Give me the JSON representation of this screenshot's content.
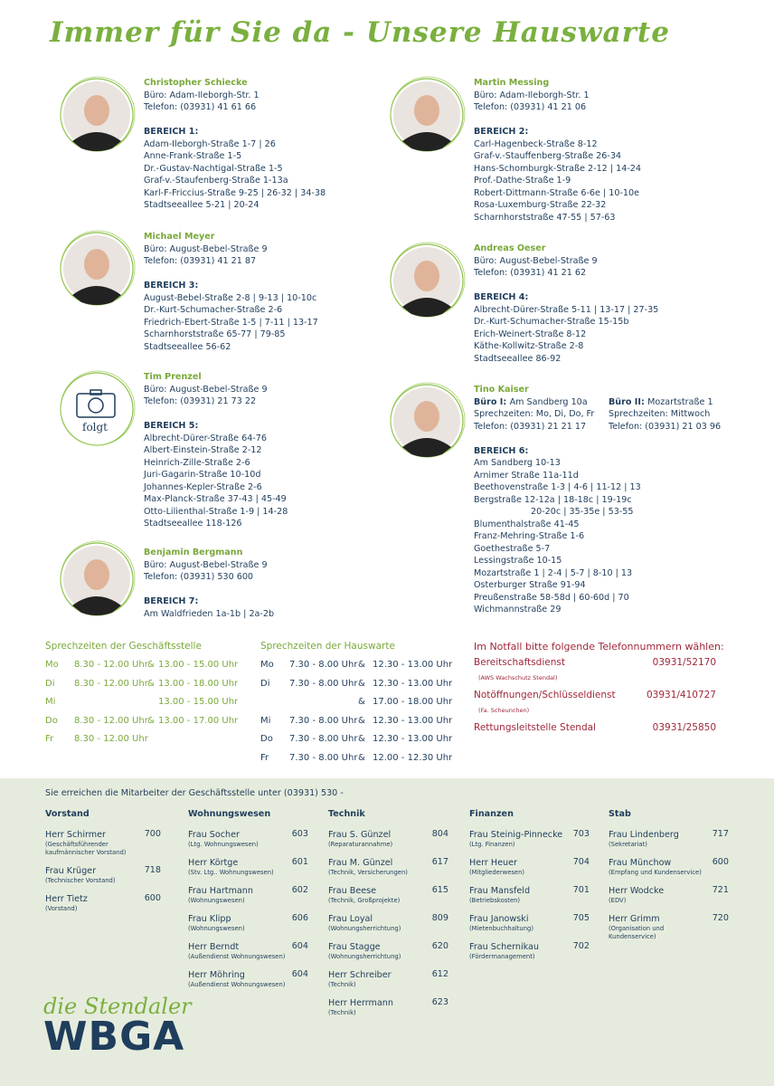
{
  "title": "Immer für Sie da - Unsere Hauswarte",
  "caretakers": [
    {
      "name": "Christopher Schiecke",
      "lines": [
        "Büro: Adam-Ileborgh-Str. 1",
        "Telefon: (03931) 41 61 66"
      ],
      "area": "BEREICH 1:",
      "streets": [
        "Adam-Ileborgh-Straße 1-7 | 26",
        "Anne-Frank-Straße 1-5",
        "Dr.-Gustav-Nachtigal-Straße 1-5",
        "Graf-v.-Staufenberg-Straße 1-13a",
        "Karl-F-Friccius-Straße 9-25 | 26-32 | 34-38",
        "Stadtseeallee 5-21 | 20-24"
      ]
    },
    {
      "name": "Michael Meyer",
      "lines": [
        "Büro: August-Bebel-Straße 9",
        "Telefon: (03931) 41 21 87"
      ],
      "area": "BEREICH 3:",
      "streets": [
        "August-Bebel-Straße 2-8 | 9-13 | 10-10c",
        "Dr.-Kurt-Schumacher-Straße 2-6",
        "Friedrich-Ebert-Straße 1-5 | 7-11 | 13-17",
        "Scharnhorststraße 65-77 | 79-85",
        "Stadtseeallee 56-62"
      ]
    },
    {
      "name": "Tim Prenzel",
      "photo_note": "folgt",
      "lines": [
        "Büro: August-Bebel-Straße 9",
        "Telefon:  (03931) 21 73 22"
      ],
      "area": "BEREICH 5:",
      "streets": [
        "Albrecht-Dürer-Straße 64-76",
        "Albert-Einstein-Straße 2-12",
        "Heinrich-Zille-Straße 2-6",
        "Juri-Gagarin-Straße 10-10d",
        "Johannes-Kepler-Straße 2-6",
        "Max-Planck-Straße 37-43 | 45-49",
        "Otto-Lilienthal-Straße 1-9 | 14-28",
        "Stadtseeallee 118-126"
      ]
    },
    {
      "name": "Benjamin Bergmann",
      "lines": [
        "Büro: August-Bebel-Straße 9",
        "Telefon:  (03931) 530 600"
      ],
      "area": "BEREICH 7:",
      "streets": [
        "Am Waldfrieden 1a-1b | 2a-2b"
      ]
    },
    {
      "name": "Martin Messing",
      "lines": [
        "Büro: Adam-Ileborgh-Str. 1",
        "Telefon: (03931) 41 21 06"
      ],
      "area": "BEREICH 2:",
      "streets": [
        "Carl-Hagenbeck-Straße 8-12",
        "Graf-v.-Stauffenberg-Straße 26-34",
        "Hans-Schomburgk-Straße 2-12 | 14-24",
        "Prof.-Dathe-Straße 1-9",
        "Robert-Dittmann-Straße 6-6e | 10-10e",
        "Rosa-Luxemburg-Straße 22-32",
        "Scharnhorststraße 47-55 | 57-63"
      ]
    },
    {
      "name": "Andreas Oeser",
      "lines": [
        "Büro: August-Bebel-Straße 9",
        "Telefon: (03931) 41 21 62"
      ],
      "area": "BEREICH 4:",
      "streets": [
        "Albrecht-Dürer-Straße 5-11 | 13-17 | 27-35",
        "Dr.-Kurt-Schumacher-Straße 15-15b",
        "Erich-Weinert-Straße 8-12",
        "Käthe-Kollwitz-Straße 2-8",
        "Stadtseeallee 86-92"
      ]
    },
    {
      "name": "Tino Kaiser",
      "offices": [
        {
          "label": "Büro I:",
          "lines": [
            "Am Sandberg 10a",
            "Sprechzeiten: Mo, Di, Do, Fr",
            "Telefon: (03931) 21 21 17"
          ]
        },
        {
          "label": "Büro II:",
          "lines": [
            "Mozartstraße 1",
            "Sprechzeiten: Mittwoch",
            "Telefon: (03931) 21 03 96"
          ]
        }
      ],
      "area": "BEREICH 6:",
      "streets": [
        "Am Sandberg 10-13",
        "Arnimer Straße 11a-11d",
        "Beethovenstraße 1-3 | 4-6 | 11-12 | 13",
        "Bergstraße 12-12a | 18-18c | 19-19c",
        "20-20c | 35-35e | 53-55",
        "Blumenthalstraße 41-45",
        "Franz-Mehring-Straße 1-6",
        "Goethestraße 5-7",
        "Lessingstraße 10-15",
        "Mozartstraße 1 | 2-4 | 5-7 | 8-10 | 13",
        "Osterburger Straße 91-94",
        "Preußenstraße 58-58d | 60-60d | 70",
        "Wichmannstraße 29"
      ]
    }
  ],
  "hours": [
    {
      "title": "Sprechzeiten der Geschäftsstelle",
      "rows": [
        {
          "day": "Mo",
          "am": "8.30 - 12.00 Uhr",
          "sep": "&",
          "pm": "13.00 - 15.00 Uhr"
        },
        {
          "day": "Di",
          "am": "8.30 - 12.00 Uhr",
          "sep": "&",
          "pm": "13.00 - 18.00 Uhr"
        },
        {
          "day": "Mi",
          "pm": "13.00 - 15.00 Uhr"
        },
        {
          "day": "Do",
          "am": "8.30 - 12.00 Uhr",
          "sep": "&",
          "pm": "13.00 - 17.00 Uhr"
        },
        {
          "day": "Fr",
          "am": "8.30 - 12.00 Uhr"
        }
      ]
    },
    {
      "title": "Sprechzeiten der Hauswarte",
      "rows": [
        {
          "day": "Mo",
          "am": "7.30 - 8.00 Uhr",
          "sep": "&",
          "pm": "12.30 - 13.00 Uhr"
        },
        {
          "day": "Di",
          "am": "7.30 - 8.00 Uhr",
          "sep": "&",
          "pm": "12.30 - 13.00 Uhr"
        },
        {
          "sep": "&",
          "pm": "17.00 - 18.00 Uhr"
        },
        {
          "day": "Mi",
          "am": "7.30 - 8.00 Uhr",
          "sep": "&",
          "pm": "12.30 - 13.00 Uhr"
        },
        {
          "day": "Do",
          "am": "7.30 - 8.00 Uhr",
          "sep": "&",
          "pm": "12.30 - 13.00 Uhr"
        },
        {
          "day": "Fr",
          "am": "7.30 - 8.00 Uhr",
          "sep": "&",
          "pm": "12.00 - 12.30 Uhr"
        }
      ]
    }
  ],
  "emergency": {
    "title": "Im Notfall bitte folgende Telefonnummern wählen:",
    "items": [
      {
        "label": "Bereitschaftsdienst",
        "number": "03931/52170",
        "note": "(AWS Wachschutz Stendal)"
      },
      {
        "label": "Notöffnungen/Schlüsseldienst",
        "number": "03931/410727",
        "note": "(Fa. Scheunchen)"
      },
      {
        "label": "Rettungsleitstelle Stendal",
        "number": "03931/25850"
      }
    ]
  },
  "staff": {
    "intro": "Sie erreichen die Mitarbeiter der Geschäftsstelle unter (03931) 530 -",
    "departments": [
      {
        "name": "Vorstand",
        "people": [
          {
            "name": "Herr Schirmer",
            "ext": 700,
            "note": "(Geschäftsführender kaufmännischer Vorstand)"
          },
          {
            "name": "Frau Krüger",
            "ext": 718,
            "note": "(Technischer Vorstand)"
          },
          {
            "name": "Herr Tietz",
            "ext": 600,
            "note": "(Vorstand)"
          }
        ]
      },
      {
        "name": "Wohnungswesen",
        "people": [
          {
            "name": "Frau Socher",
            "ext": 603,
            "note": "(Ltg. Wohnungswesen)"
          },
          {
            "name": "Herr Körtge",
            "ext": 601,
            "note": "(Stv. Ltg.. Wohnungswesen)"
          },
          {
            "name": "Frau Hartmann",
            "ext": 602,
            "note": "(Wohnungswesen)"
          },
          {
            "name": "Frau Klipp",
            "ext": 606,
            "note": "(Wohnungswesen)"
          },
          {
            "name": "Herr Berndt",
            "ext": 604,
            "note": "(Außendienst Wohnungswesen)"
          },
          {
            "name": "Herr Möhring",
            "ext": 604,
            "note": "(Außendienst Wohnungswesen)"
          }
        ]
      },
      {
        "name": "Technik",
        "people": [
          {
            "name": "Frau S. Günzel",
            "ext": 804,
            "note": "(Reparaturannahme)"
          },
          {
            "name": "Frau M. Günzel",
            "ext": 617,
            "note": "(Technik, Versicherungen)"
          },
          {
            "name": "Frau Beese",
            "ext": 615,
            "note": "(Technik, Großprojekte)"
          },
          {
            "name": "Frau Loyal",
            "ext": 809,
            "note": "(Wohnungsherrichtung)"
          },
          {
            "name": "Frau Stagge",
            "ext": 620,
            "note": "(Wohnungsherrichtung)"
          },
          {
            "name": "Herr Schreiber",
            "ext": 612,
            "note": "(Technik)"
          },
          {
            "name": "Herr Herrmann",
            "ext": 623,
            "note": "(Technik)"
          }
        ]
      },
      {
        "name": "Finanzen",
        "people": [
          {
            "name": "Frau Steinig-Pinnecke",
            "ext": 703,
            "note": "(Ltg. Finanzen)"
          },
          {
            "name": "Herr Heuer",
            "ext": 704,
            "note": "(Mitgliederwesen)"
          },
          {
            "name": "Frau Mansfeld",
            "ext": 701,
            "note": "(Betriebskosten)"
          },
          {
            "name": "Frau Janowski",
            "ext": 705,
            "note": "(Mietenbuchhaltung)"
          },
          {
            "name": "Frau Schernikau",
            "ext": 702,
            "note": "(Fördermanagement)"
          }
        ]
      },
      {
        "name": "Stab",
        "people": [
          {
            "name": "Frau Lindenberg",
            "ext": 717,
            "note": "(Sekretariat)"
          },
          {
            "name": "Frau Münchow",
            "ext": 600,
            "note": "(Empfang und Kundenservice)"
          },
          {
            "name": "Herr Wodcke",
            "ext": 721,
            "note": "(EDV)"
          },
          {
            "name": "Herr Grimm",
            "ext": 720,
            "note": "(Organisation und Kundenservice)"
          }
        ]
      }
    ]
  },
  "logo": {
    "script": "die Stendaler",
    "word": "WBGA"
  }
}
